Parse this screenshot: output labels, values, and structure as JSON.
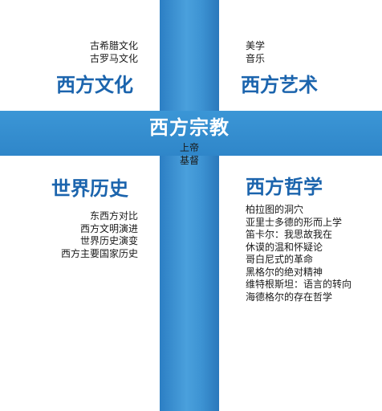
{
  "center": {
    "title": "西方宗教",
    "items": [
      "上帝",
      "基督"
    ]
  },
  "quadrants": {
    "culture": {
      "title": "西方文化",
      "items": [
        "古希腊文化",
        "古罗马文化"
      ]
    },
    "art": {
      "title": "西方艺术",
      "items": [
        "美学",
        "音乐"
      ]
    },
    "history": {
      "title": "世界历史",
      "items": [
        "东西方对比",
        "西方文明演进",
        "世界历史演变",
        "西方主要国家历史"
      ]
    },
    "philosophy": {
      "title": "西方哲学",
      "items": [
        "柏拉图的洞穴",
        "亚里士多德的形而上学",
        "笛卡尔：我思故我在",
        "休谟的温和怀疑论",
        "哥白尼式的革命",
        "黑格尔的绝对精神",
        "维特根斯坦：语言的转向",
        "海德格尔的存在哲学"
      ]
    }
  },
  "colors": {
    "heading": "#1b64ad",
    "cross": "#3b96d6",
    "text": "#1a1a1a"
  }
}
